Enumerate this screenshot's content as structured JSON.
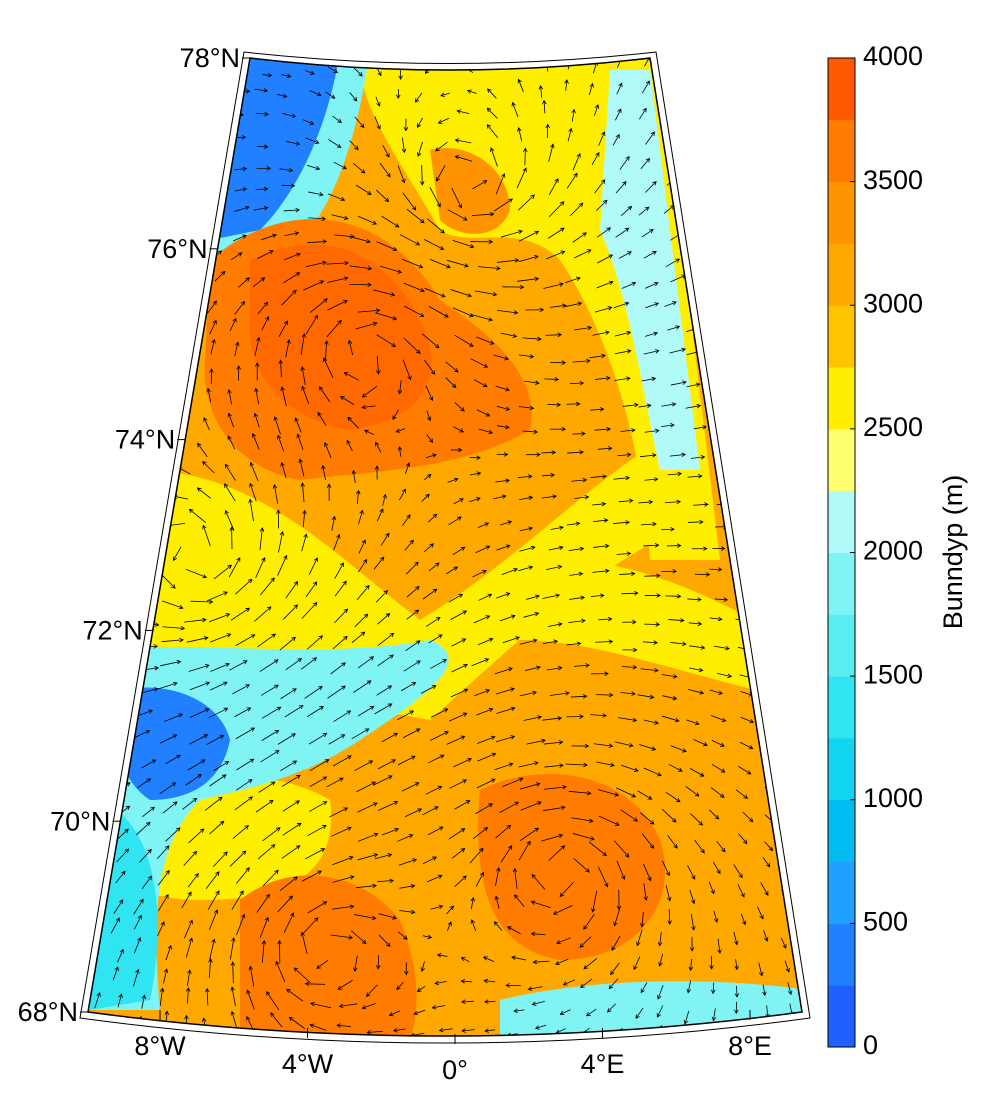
{
  "map": {
    "lat_ticks": [
      {
        "value": 68,
        "label": "68°N"
      },
      {
        "value": 70,
        "label": "70°N"
      },
      {
        "value": 72,
        "label": "72°N"
      },
      {
        "value": 74,
        "label": "74°N"
      },
      {
        "value": 76,
        "label": "76°N"
      },
      {
        "value": 78,
        "label": "78°N"
      }
    ],
    "lon_ticks": [
      {
        "value": -8,
        "label": "8°W"
      },
      {
        "value": -4,
        "label": "4°W"
      },
      {
        "value": 0,
        "label": "0°"
      },
      {
        "value": 4,
        "label": "4°E"
      },
      {
        "value": 8,
        "label": "8°E"
      }
    ],
    "colorbar": {
      "label": "Bunndyp (m)",
      "lim": [
        0,
        4000
      ],
      "ticks": [
        0,
        500,
        1000,
        1500,
        2000,
        2500,
        3000,
        3500,
        4000
      ],
      "colors": [
        "#2060ff",
        "#2080ff",
        "#20a0ff",
        "#00bcf0",
        "#10d4f0",
        "#30e4f2",
        "#58eef2",
        "#80f4f4",
        "#b0fafa",
        "#ffff70",
        "#ffee00",
        "#ffc400",
        "#ffa800",
        "#ff9400",
        "#ff7c00",
        "#ff5a00"
      ]
    }
  }
}
